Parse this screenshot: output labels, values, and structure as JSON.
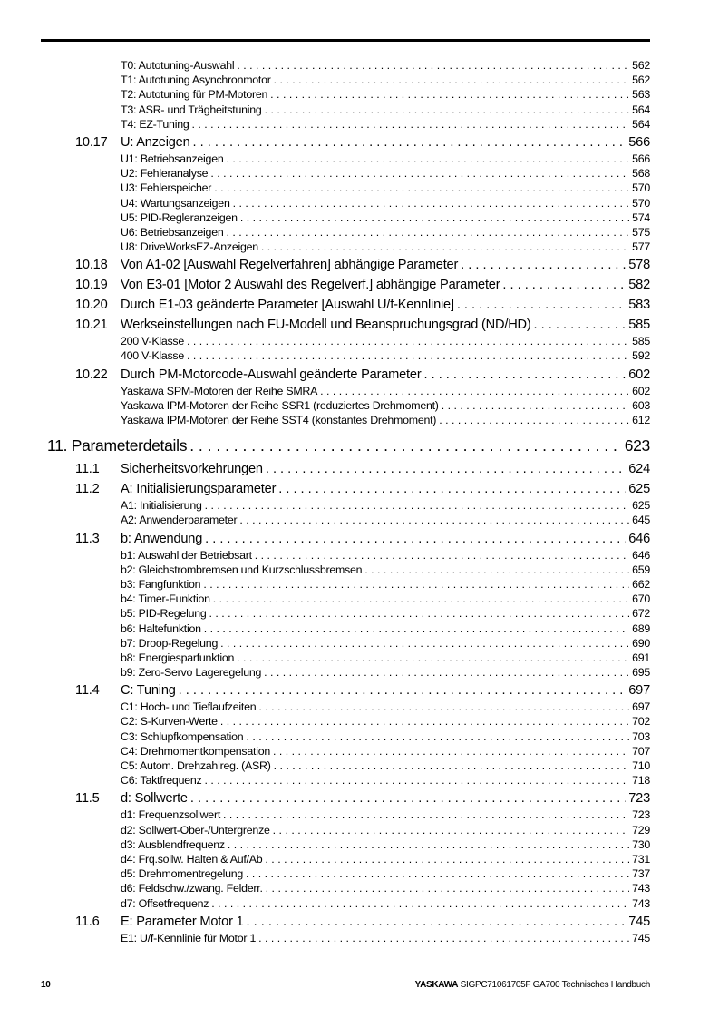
{
  "toc": [
    {
      "type": "sub",
      "title": "T0: Autotuning-Auswahl",
      "page": "562"
    },
    {
      "type": "sub",
      "title": "T1: Autotuning Asynchronmotor",
      "page": "562"
    },
    {
      "type": "sub",
      "title": "T2: Autotuning für PM-Motoren",
      "page": "563"
    },
    {
      "type": "sub",
      "title": "T3: ASR- und Trägheitstuning",
      "page": "564"
    },
    {
      "type": "sub",
      "title": "T4: EZ-Tuning",
      "page": "564"
    },
    {
      "type": "sec",
      "num": "10.17",
      "title": "U: Anzeigen",
      "page": "566"
    },
    {
      "type": "sub",
      "title": "U1: Betriebsanzeigen",
      "page": "566"
    },
    {
      "type": "sub",
      "title": "U2: Fehleranalyse",
      "page": "568"
    },
    {
      "type": "sub",
      "title": "U3: Fehlerspeicher",
      "page": "570"
    },
    {
      "type": "sub",
      "title": "U4: Wartungsanzeigen",
      "page": "570"
    },
    {
      "type": "sub",
      "title": "U5: PID-Regleranzeigen",
      "page": "574"
    },
    {
      "type": "sub",
      "title": "U6: Betriebsanzeigen",
      "page": "575"
    },
    {
      "type": "sub",
      "title": "U8: DriveWorksEZ-Anzeigen",
      "page": "577"
    },
    {
      "type": "sec",
      "num": "10.18",
      "title": "Von A1-02 [Auswahl Regelverfahren] abhängige Parameter",
      "page": "578"
    },
    {
      "type": "sec",
      "num": "10.19",
      "title": "Von E3-01 [Motor 2 Auswahl des Regelverf.] abhängige Parameter",
      "page": "582"
    },
    {
      "type": "sec",
      "num": "10.20",
      "title": "Durch E1-03 geänderte Parameter [Auswahl U/f-Kennlinie]",
      "page": "583"
    },
    {
      "type": "sec",
      "num": "10.21",
      "title": "Werkseinstellungen nach FU-Modell und Beanspruchungsgrad (ND/HD)",
      "page": "585"
    },
    {
      "type": "sub",
      "title": "200 V-Klasse",
      "page": "585"
    },
    {
      "type": "sub",
      "title": "400 V-Klasse",
      "page": "592"
    },
    {
      "type": "sec",
      "num": "10.22",
      "title": "Durch PM-Motorcode-Auswahl geänderte Parameter",
      "page": "602"
    },
    {
      "type": "sub",
      "title": "Yaskawa SPM-Motoren der Reihe SMRA",
      "page": "602"
    },
    {
      "type": "sub",
      "title": "Yaskawa IPM-Motoren der Reihe SSR1 (reduziertes Drehmoment)",
      "page": "603"
    },
    {
      "type": "sub",
      "title": "Yaskawa IPM-Motoren der Reihe SST4 (konstantes Drehmoment)",
      "page": "612"
    },
    {
      "type": "chap",
      "title": "11. Parameterdetails",
      "page": "623"
    },
    {
      "type": "sec",
      "num": "11.1",
      "title": "Sicherheitsvorkehrungen",
      "page": "624"
    },
    {
      "type": "sec",
      "num": "11.2",
      "title": "A: Initialisierungsparameter",
      "page": "625"
    },
    {
      "type": "sub",
      "title": "A1: Initialisierung",
      "page": "625"
    },
    {
      "type": "sub",
      "title": "A2: Anwenderparameter",
      "page": "645"
    },
    {
      "type": "sec",
      "num": "11.3",
      "title": "b: Anwendung",
      "page": "646"
    },
    {
      "type": "sub",
      "title": "b1: Auswahl der Betriebsart",
      "page": "646"
    },
    {
      "type": "sub",
      "title": "b2: Gleichstrombremsen und Kurzschlussbremsen",
      "page": "659"
    },
    {
      "type": "sub",
      "title": "b3: Fangfunktion",
      "page": "662"
    },
    {
      "type": "sub",
      "title": "b4: Timer-Funktion",
      "page": "670"
    },
    {
      "type": "sub",
      "title": "b5: PID-Regelung",
      "page": "672"
    },
    {
      "type": "sub",
      "title": "b6: Haltefunktion",
      "page": "689"
    },
    {
      "type": "sub",
      "title": "b7: Droop-Regelung",
      "page": "690"
    },
    {
      "type": "sub",
      "title": "b8: Energiesparfunktion",
      "page": "691"
    },
    {
      "type": "sub",
      "title": "b9: Zero-Servo Lageregelung",
      "page": "695"
    },
    {
      "type": "sec",
      "num": "11.4",
      "title": "C: Tuning",
      "page": "697"
    },
    {
      "type": "sub",
      "title": "C1: Hoch- und Tieflaufzeiten",
      "page": "697"
    },
    {
      "type": "sub",
      "title": "C2: S-Kurven-Werte",
      "page": "702"
    },
    {
      "type": "sub",
      "title": "C3: Schlupfkompensation",
      "page": "703"
    },
    {
      "type": "sub",
      "title": "C4: Drehmomentkompensation",
      "page": "707"
    },
    {
      "type": "sub",
      "title": "C5: Autom. Drehzahlreg. (ASR)",
      "page": "710"
    },
    {
      "type": "sub",
      "title": "C6: Taktfrequenz",
      "page": "718"
    },
    {
      "type": "sec",
      "num": "11.5",
      "title": "d: Sollwerte",
      "page": "723"
    },
    {
      "type": "sub",
      "title": "d1: Frequenzsollwert",
      "page": "723"
    },
    {
      "type": "sub",
      "title": "d2: Sollwert-Ober-/Untergrenze",
      "page": "729"
    },
    {
      "type": "sub",
      "title": "d3: Ausblendfrequenz",
      "page": "730"
    },
    {
      "type": "sub",
      "title": "d4: Frq.sollw. Halten & Auf/Ab",
      "page": "731"
    },
    {
      "type": "sub",
      "title": "d5: Drehmomentregelung",
      "page": "737"
    },
    {
      "type": "sub",
      "title": "d6: Feldschw./zwang. Felderr.",
      "page": "743"
    },
    {
      "type": "sub",
      "title": "d7: Offsetfrequenz",
      "page": "743"
    },
    {
      "type": "sec",
      "num": "11.6",
      "title": "E: Parameter Motor 1",
      "page": "745"
    },
    {
      "type": "sub",
      "title": "E1: U/f-Kennlinie für Motor 1",
      "page": "745"
    }
  ],
  "footer": {
    "page_number": "10",
    "brand": "YASKAWA",
    "doc_title": "SIGPC71061705F GA700 Technisches Handbuch"
  }
}
